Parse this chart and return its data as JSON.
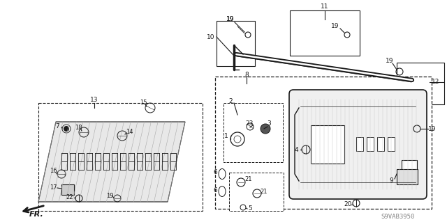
{
  "bg_color": "#ffffff",
  "line_color": "#1a1a1a",
  "diagram_code": "S9VAB3950",
  "fig_w": 6.4,
  "fig_h": 3.19,
  "dpi": 100
}
